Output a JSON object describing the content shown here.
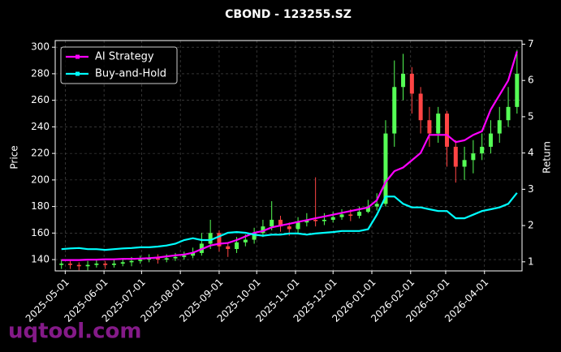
{
  "chart_data": {
    "type": "candlestick",
    "title": "CBOND - 123255.SZ",
    "ylabel": "Price",
    "y2label": "Return",
    "watermark": "uqtool.com",
    "x": [
      "2025-04-28",
      "2025-05-05",
      "2025-05-12",
      "2025-05-19",
      "2025-05-26",
      "2025-06-02",
      "2025-06-09",
      "2025-06-16",
      "2025-06-23",
      "2025-06-30",
      "2025-07-07",
      "2025-07-14",
      "2025-07-21",
      "2025-07-28",
      "2025-08-04",
      "2025-08-11",
      "2025-08-18",
      "2025-08-25",
      "2025-09-01",
      "2025-09-08",
      "2025-09-15",
      "2025-09-22",
      "2025-09-29",
      "2025-10-06",
      "2025-10-13",
      "2025-10-20",
      "2025-10-27",
      "2025-11-03",
      "2025-11-10",
      "2025-11-17",
      "2025-11-24",
      "2025-12-01",
      "2025-12-08",
      "2025-12-15",
      "2025-12-22",
      "2025-12-29",
      "2026-01-05",
      "2026-01-12",
      "2026-01-19",
      "2026-01-26",
      "2026-02-02",
      "2026-02-09",
      "2026-02-16",
      "2026-02-23",
      "2026-03-02",
      "2026-03-09",
      "2026-03-16",
      "2026-03-23",
      "2026-03-30",
      "2026-04-06",
      "2026-04-13",
      "2026-04-20",
      "2026-04-27"
    ],
    "open": [
      136,
      137,
      136,
      135,
      136,
      137,
      136,
      137,
      138,
      139,
      140,
      141,
      140,
      141,
      142,
      143,
      145,
      152,
      160,
      150,
      148,
      153,
      155,
      160,
      165,
      170,
      165,
      163,
      168,
      170,
      169,
      170,
      172,
      174,
      173,
      176,
      180,
      182,
      235,
      270,
      280,
      265,
      245,
      235,
      250,
      225,
      210,
      215,
      220,
      225,
      235,
      245,
      255
    ],
    "high": [
      140,
      139,
      138,
      139,
      140,
      139,
      140,
      141,
      142,
      143,
      144,
      144,
      144,
      145,
      146,
      149,
      160,
      170,
      162,
      153,
      157,
      159,
      164,
      170,
      184,
      173,
      168,
      172,
      175,
      202,
      175,
      176,
      178,
      178,
      180,
      185,
      190,
      245,
      290,
      295,
      285,
      270,
      255,
      255,
      252,
      230,
      225,
      230,
      235,
      245,
      255,
      270,
      298
    ],
    "low": [
      133,
      133,
      132,
      132,
      134,
      133,
      134,
      135,
      135,
      137,
      138,
      137,
      138,
      139,
      140,
      141,
      143,
      148,
      146,
      142,
      145,
      150,
      152,
      157,
      162,
      161,
      158,
      160,
      165,
      165,
      166,
      168,
      170,
      169,
      171,
      175,
      177,
      180,
      225,
      260,
      250,
      235,
      225,
      228,
      210,
      198,
      200,
      205,
      215,
      220,
      228,
      240,
      250
    ],
    "close": [
      137,
      136,
      135,
      136,
      137,
      136,
      137,
      138,
      139,
      140,
      141,
      140,
      141,
      142,
      143,
      145,
      152,
      160,
      150,
      148,
      153,
      155,
      160,
      165,
      170,
      165,
      163,
      168,
      170,
      169,
      170,
      172,
      174,
      173,
      176,
      180,
      182,
      235,
      270,
      280,
      265,
      245,
      235,
      250,
      225,
      210,
      215,
      220,
      225,
      235,
      245,
      255,
      280
    ],
    "up_color": "#55ff55",
    "down_color": "#ff4444",
    "series": [
      {
        "name": "AI Strategy",
        "color": "#ff00ff",
        "axis": "y2",
        "values": [
          1.05,
          1.05,
          1.05,
          1.06,
          1.06,
          1.07,
          1.07,
          1.08,
          1.08,
          1.09,
          1.1,
          1.12,
          1.15,
          1.18,
          1.2,
          1.25,
          1.35,
          1.45,
          1.5,
          1.52,
          1.6,
          1.7,
          1.8,
          1.85,
          1.95,
          2.0,
          2.05,
          2.1,
          2.15,
          2.2,
          2.25,
          2.3,
          2.35,
          2.4,
          2.45,
          2.5,
          2.7,
          3.2,
          3.5,
          3.6,
          3.8,
          4.0,
          4.5,
          4.5,
          4.5,
          4.3,
          4.35,
          4.5,
          4.6,
          5.2,
          5.6,
          6.0,
          6.8
        ]
      },
      {
        "name": "Buy-and-Hold",
        "color": "#00ffff",
        "axis": "y2",
        "values": [
          1.35,
          1.37,
          1.38,
          1.35,
          1.35,
          1.33,
          1.35,
          1.37,
          1.38,
          1.4,
          1.4,
          1.42,
          1.45,
          1.5,
          1.6,
          1.65,
          1.6,
          1.6,
          1.7,
          1.8,
          1.82,
          1.8,
          1.75,
          1.72,
          1.75,
          1.75,
          1.78,
          1.78,
          1.75,
          1.78,
          1.8,
          1.82,
          1.85,
          1.85,
          1.85,
          1.9,
          2.3,
          2.8,
          2.8,
          2.6,
          2.5,
          2.5,
          2.45,
          2.4,
          2.4,
          2.2,
          2.2,
          2.3,
          2.4,
          2.45,
          2.5,
          2.6,
          2.9
        ]
      }
    ],
    "xlim": [
      "2025-04-23",
      "2026-05-01"
    ],
    "xticks": [
      "2025-05-01",
      "2025-06-01",
      "2025-07-01",
      "2025-08-01",
      "2025-09-01",
      "2025-10-01",
      "2025-11-01",
      "2025-12-01",
      "2026-01-01",
      "2026-02-01",
      "2026-03-01",
      "2026-04-01"
    ],
    "ylim": [
      131.5,
      305
    ],
    "yticks": [
      140,
      160,
      180,
      200,
      220,
      240,
      260,
      280,
      300
    ],
    "y2lim": [
      0.75,
      7.1
    ],
    "y2ticks": [
      1,
      2,
      3,
      4,
      5,
      6,
      7
    ],
    "grid": true,
    "legend": "upper left"
  }
}
